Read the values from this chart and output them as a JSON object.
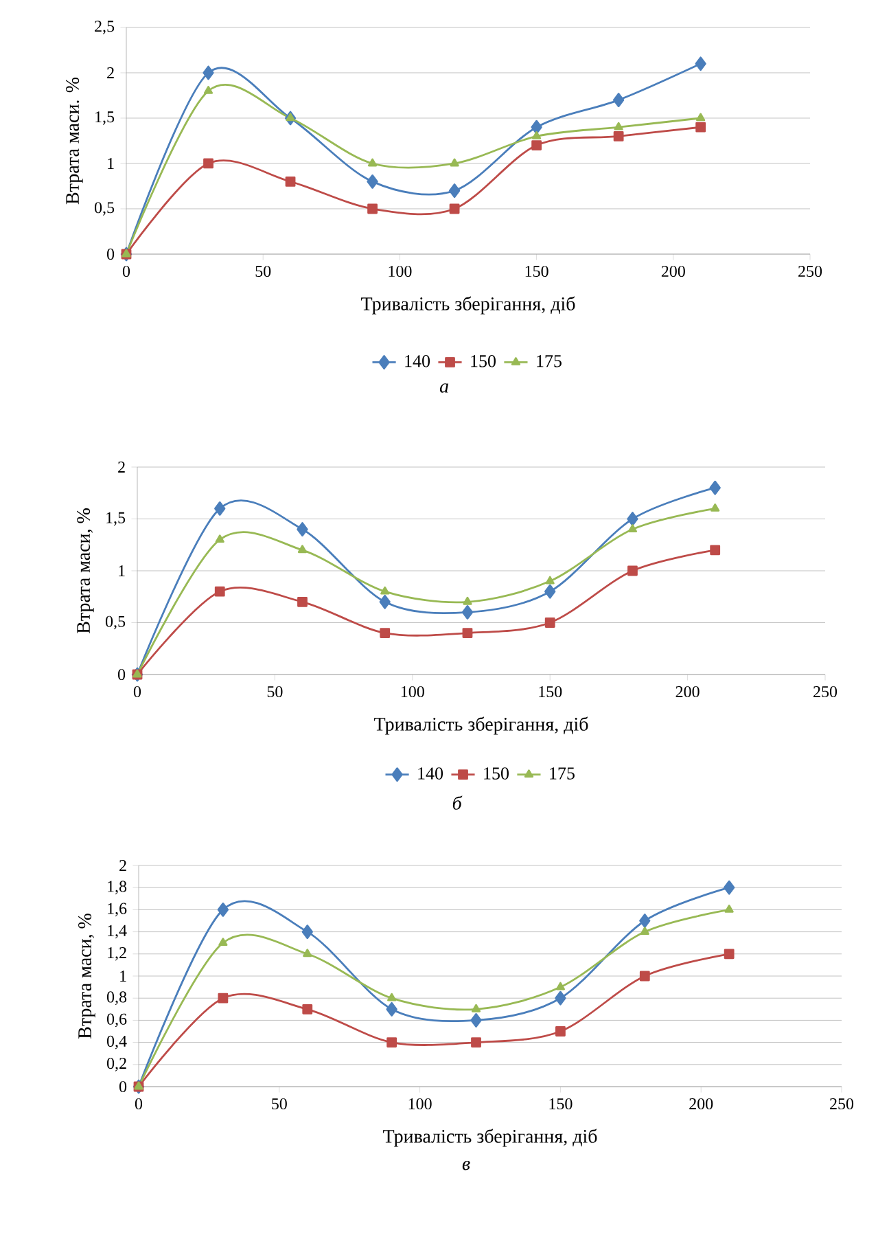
{
  "chart_data": [
    {
      "type": "line",
      "x": [
        0,
        30,
        60,
        90,
        120,
        150,
        180,
        210
      ],
      "xlabel": "Тривалість зберігання, діб",
      "ylabel": "Втрата маси. %",
      "xlim": [
        0,
        250
      ],
      "xticks": [
        0,
        50,
        100,
        150,
        200,
        250
      ],
      "ylim": [
        0,
        2.5
      ],
      "yticks": [
        0,
        {
          "value": 0.5,
          "label": "0,5"
        },
        1,
        {
          "value": 1.5,
          "label": "1,5"
        },
        2,
        {
          "value": 2.5,
          "label": "2,5"
        }
      ],
      "grid": "y",
      "legend": "bottom",
      "line_style": "solid",
      "annotations": [
        "*а*"
      ],
      "series": [
        {
          "name": "140",
          "color": "#4a7ebb",
          "marker": "diamond",
          "values": [
            0,
            2,
            1.5,
            0.8,
            0.7,
            1.4,
            1.7,
            2.1
          ]
        },
        {
          "name": "150",
          "color": "#be4b48",
          "marker": "square",
          "values": [
            0,
            1,
            0.8,
            0.5,
            0.5,
            1.2,
            1.3,
            1.4
          ]
        },
        {
          "name": "175",
          "color": "#98b954",
          "marker": "triangle",
          "values": [
            0,
            1.8,
            1.5,
            1.0,
            1.0,
            1.3,
            1.4,
            1.5
          ]
        }
      ]
    },
    {
      "type": "line",
      "x": [
        0,
        30,
        60,
        90,
        120,
        150,
        180,
        210
      ],
      "xlabel": "Тривалість зберігання, діб",
      "ylabel": "Втрата маси, %",
      "xlim": [
        0,
        250
      ],
      "xticks": [
        0,
        50,
        100,
        150,
        200,
        250
      ],
      "ylim": [
        0,
        2
      ],
      "yticks": [
        0,
        {
          "value": 0.5,
          "label": "0,5"
        },
        1,
        {
          "value": 1.5,
          "label": "1,5"
        },
        2
      ],
      "grid": "y",
      "legend": "bottom",
      "line_style": "solid",
      "annotations": [
        "*б*"
      ],
      "series": [
        {
          "name": "140",
          "color": "#4a7ebb",
          "marker": "diamond",
          "values": [
            0,
            1.6,
            1.4,
            0.7,
            0.6,
            0.8,
            1.5,
            1.8
          ]
        },
        {
          "name": "150",
          "color": "#be4b48",
          "marker": "square",
          "values": [
            0,
            0.8,
            0.7,
            0.4,
            0.4,
            0.5,
            1.0,
            1.2
          ]
        },
        {
          "name": "175",
          "color": "#98b954",
          "marker": "triangle",
          "values": [
            0,
            1.3,
            1.2,
            0.8,
            0.7,
            0.9,
            1.4,
            1.6
          ]
        }
      ]
    },
    {
      "type": "line",
      "x": [
        0,
        30,
        60,
        90,
        120,
        150,
        180,
        210
      ],
      "xlabel": "Тривалість зберігання, діб",
      "ylabel": "Втрата маси, %",
      "xlim": [
        0,
        250
      ],
      "xticks": [
        0,
        50,
        100,
        150,
        200,
        250
      ],
      "ylim": [
        0,
        2
      ],
      "yticks": [
        0,
        {
          "value": 0.2,
          "label": "0,2"
        },
        {
          "value": 0.4,
          "label": "0,4"
        },
        {
          "value": 0.6,
          "label": "0,6"
        },
        {
          "value": 0.8,
          "label": "0,8"
        },
        1,
        {
          "value": 1.2,
          "label": "1,2"
        },
        {
          "value": 1.4,
          "label": "1,4"
        },
        {
          "value": 1.6,
          "label": "1,6"
        },
        {
          "value": 1.8,
          "label": "1,8"
        },
        2
      ],
      "grid": "y",
      "legend": false,
      "line_style": "solid",
      "annotations": [
        "*в*"
      ],
      "series": [
        {
          "color": "#4a7ebb",
          "marker": "diamond",
          "values": [
            0,
            1.6,
            1.4,
            0.7,
            0.6,
            0.8,
            1.5,
            1.8
          ]
        },
        {
          "color": "#be4b48",
          "marker": "square",
          "values": [
            0,
            0.8,
            0.7,
            0.4,
            0.4,
            0.5,
            1.0,
            1.2
          ]
        },
        {
          "color": "#98b954",
          "marker": "triangle",
          "values": [
            0,
            1.3,
            1.2,
            0.8,
            0.7,
            0.9,
            1.4,
            1.6
          ]
        }
      ]
    }
  ]
}
